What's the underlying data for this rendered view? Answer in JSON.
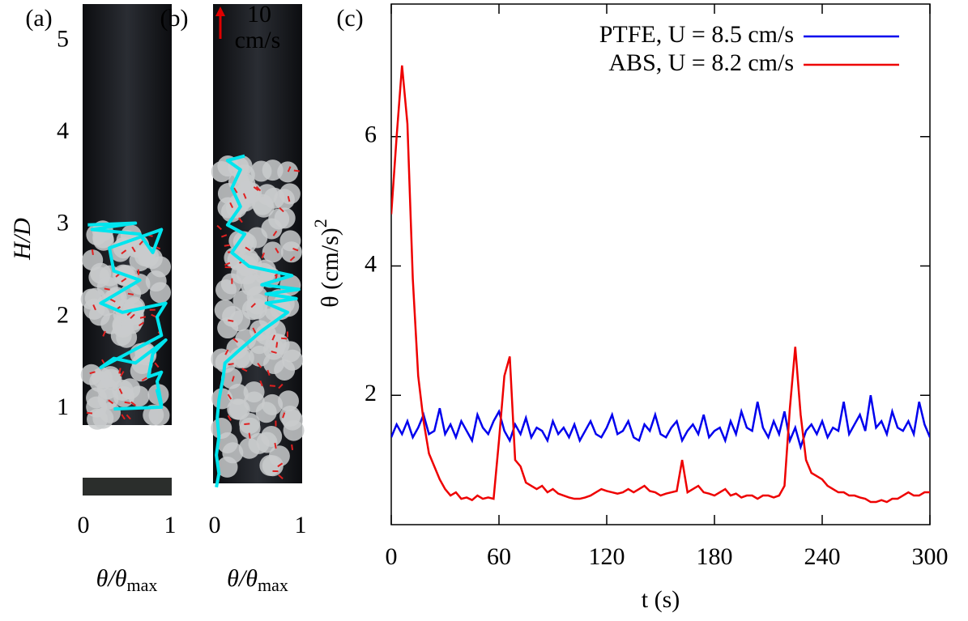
{
  "chart_data": [
    {
      "type": "profile",
      "label": "(a)",
      "ylabel": "H/D",
      "xlabel": "θ/θ",
      "xlabel_sub": "max",
      "xlim": [
        0,
        1
      ],
      "xticks": [
        0,
        1
      ],
      "ylim": [
        0.06,
        5.4
      ],
      "yticks": [
        1,
        2,
        3,
        4,
        5
      ],
      "series": [
        {
          "color": "#00e5ee",
          "x": [
            0.35,
            0.9,
            0.85,
            0.9,
            0.85,
            0.9,
            0.75,
            0.8,
            0.95,
            0.6,
            0.35,
            0.2,
            0.9,
            0.85,
            0.95,
            0.45,
            0.2,
            0.65,
            0.35,
            0.3,
            0.9,
            0.8,
            0.65,
            0.1,
            0.6,
            0.05
          ],
          "values": [
            1.0,
            1.02,
            1.2,
            1.05,
            1.3,
            1.4,
            1.35,
            1.6,
            1.75,
            1.5,
            1.55,
            1.45,
            1.8,
            2.0,
            2.15,
            2.05,
            2.15,
            2.4,
            2.5,
            2.75,
            2.95,
            2.7,
            2.9,
            2.95,
            3.02,
            3.0
          ]
        }
      ]
    },
    {
      "type": "profile",
      "label": "(b)",
      "xlabel": "θ/θ",
      "xlabel_sub": "max",
      "annotation": [
        "10",
        "cm/s"
      ],
      "xlim": [
        0,
        1
      ],
      "xticks": [
        0,
        1
      ],
      "ylim": [
        0.06,
        5.4
      ],
      "series": [
        {
          "color": "#00e5ee",
          "x": [
            0.02,
            0.05,
            0.02,
            0.05,
            0.03,
            0.05,
            0.1,
            0.12,
            0.3,
            0.55,
            0.85,
            0.6,
            0.95,
            0.6,
            0.98,
            0.55,
            0.9,
            0.4,
            0.2,
            0.35,
            0.15,
            0.3,
            0.2,
            0.3,
            0.15,
            0.35
          ],
          "values": [
            0.15,
            0.3,
            0.5,
            0.7,
            0.9,
            1.1,
            1.35,
            1.5,
            1.65,
            1.85,
            2.05,
            2.15,
            2.2,
            2.25,
            2.3,
            2.35,
            2.45,
            2.55,
            2.7,
            2.9,
            3.0,
            3.2,
            3.4,
            3.6,
            3.7,
            3.75
          ]
        }
      ]
    },
    {
      "type": "line",
      "label": "(c)",
      "xlabel": "t (s)",
      "ylabel": "θ (cm/s)",
      "ylabel_sup": "2",
      "legend": "top-right",
      "xlim": [
        0,
        300
      ],
      "xticks": [
        0,
        60,
        120,
        180,
        240,
        300
      ],
      "ylim": [
        0,
        8.05
      ],
      "yticks": [
        2,
        4,
        6
      ],
      "x": [
        0,
        3,
        6,
        9,
        12,
        15,
        18,
        21,
        24,
        27,
        30,
        33,
        36,
        39,
        42,
        45,
        48,
        51,
        54,
        57,
        60,
        63,
        66,
        69,
        72,
        75,
        78,
        81,
        84,
        87,
        90,
        93,
        96,
        99,
        102,
        105,
        108,
        111,
        114,
        117,
        120,
        123,
        126,
        129,
        132,
        135,
        138,
        141,
        144,
        147,
        150,
        153,
        156,
        159,
        162,
        165,
        168,
        171,
        174,
        177,
        180,
        183,
        186,
        189,
        192,
        195,
        198,
        201,
        204,
        207,
        210,
        213,
        216,
        219,
        222,
        225,
        228,
        231,
        234,
        237,
        240,
        243,
        246,
        249,
        252,
        255,
        258,
        261,
        264,
        267,
        270,
        273,
        276,
        279,
        282,
        285,
        288,
        291,
        294,
        297,
        300
      ],
      "series": [
        {
          "name": "PTFE, U = 8.5 cm/s",
          "color": "#0000ee",
          "values": [
            1.35,
            1.55,
            1.4,
            1.6,
            1.35,
            1.5,
            1.7,
            1.4,
            1.45,
            1.8,
            1.4,
            1.55,
            1.35,
            1.6,
            1.45,
            1.3,
            1.7,
            1.5,
            1.4,
            1.6,
            1.75,
            1.45,
            1.3,
            1.55,
            1.4,
            1.65,
            1.35,
            1.5,
            1.45,
            1.3,
            1.6,
            1.4,
            1.5,
            1.35,
            1.55,
            1.3,
            1.45,
            1.6,
            1.4,
            1.35,
            1.5,
            1.7,
            1.4,
            1.45,
            1.6,
            1.35,
            1.3,
            1.55,
            1.45,
            1.7,
            1.4,
            1.35,
            1.5,
            1.6,
            1.3,
            1.45,
            1.55,
            1.4,
            1.7,
            1.35,
            1.45,
            1.5,
            1.3,
            1.6,
            1.4,
            1.75,
            1.5,
            1.45,
            1.9,
            1.5,
            1.35,
            1.6,
            1.4,
            1.75,
            1.3,
            1.5,
            1.2,
            1.45,
            1.55,
            1.4,
            1.6,
            1.35,
            1.5,
            1.45,
            1.9,
            1.4,
            1.55,
            1.7,
            1.45,
            2.0,
            1.5,
            1.6,
            1.4,
            1.75,
            1.5,
            1.45,
            1.6,
            1.4,
            1.9,
            1.55,
            1.35
          ]
        },
        {
          "name": "ABS, U = 8.2 cm/s",
          "color": "#ee0000",
          "values": [
            4.8,
            6.0,
            7.1,
            6.2,
            3.8,
            2.3,
            1.6,
            1.1,
            0.9,
            0.7,
            0.55,
            0.45,
            0.5,
            0.4,
            0.42,
            0.38,
            0.45,
            0.4,
            0.42,
            0.4,
            1.3,
            2.3,
            2.6,
            1.0,
            0.9,
            0.65,
            0.6,
            0.55,
            0.6,
            0.5,
            0.55,
            0.48,
            0.45,
            0.42,
            0.4,
            0.4,
            0.42,
            0.45,
            0.5,
            0.55,
            0.52,
            0.5,
            0.48,
            0.5,
            0.55,
            0.5,
            0.55,
            0.6,
            0.52,
            0.5,
            0.45,
            0.48,
            0.5,
            0.52,
            1.0,
            0.5,
            0.55,
            0.6,
            0.5,
            0.48,
            0.45,
            0.5,
            0.55,
            0.45,
            0.48,
            0.42,
            0.45,
            0.45,
            0.4,
            0.45,
            0.45,
            0.42,
            0.45,
            0.6,
            1.8,
            2.75,
            1.7,
            1.0,
            0.8,
            0.75,
            0.7,
            0.6,
            0.55,
            0.5,
            0.5,
            0.45,
            0.45,
            0.42,
            0.4,
            0.35,
            0.35,
            0.38,
            0.35,
            0.4,
            0.4,
            0.45,
            0.5,
            0.45,
            0.45,
            0.5,
            0.5
          ]
        }
      ]
    }
  ]
}
